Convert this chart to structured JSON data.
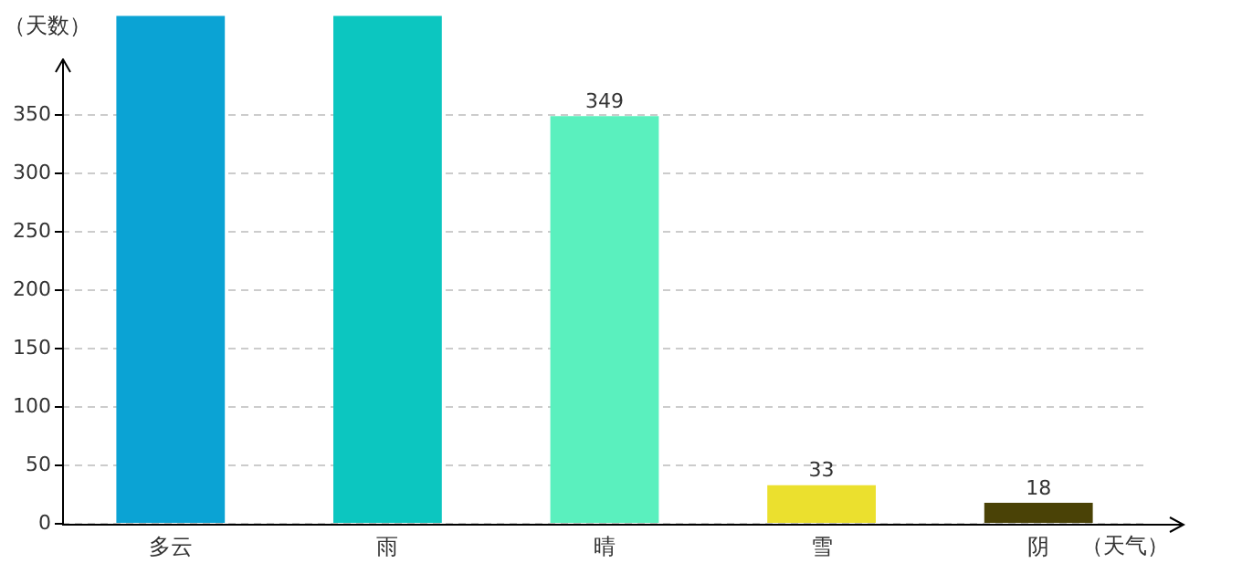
{
  "chart_data": {
    "type": "bar",
    "xlabel": "（天气）",
    "ylabel": "（天数）",
    "categories": [
      "多云",
      "雨",
      "晴",
      "雪",
      "阴"
    ],
    "values": [
      435,
      435,
      349,
      33,
      18
    ],
    "value_labels": [
      null,
      null,
      "349",
      "33",
      "18"
    ],
    "colors": [
      "#0ba3d4",
      "#0cc6c0",
      "#5af0be",
      "#ebe02e",
      "#4a4206"
    ],
    "ylim": [
      0,
      435
    ],
    "yticks": [
      0,
      50,
      100,
      150,
      200,
      250,
      300,
      350
    ],
    "grid": "y",
    "legend": false
  }
}
